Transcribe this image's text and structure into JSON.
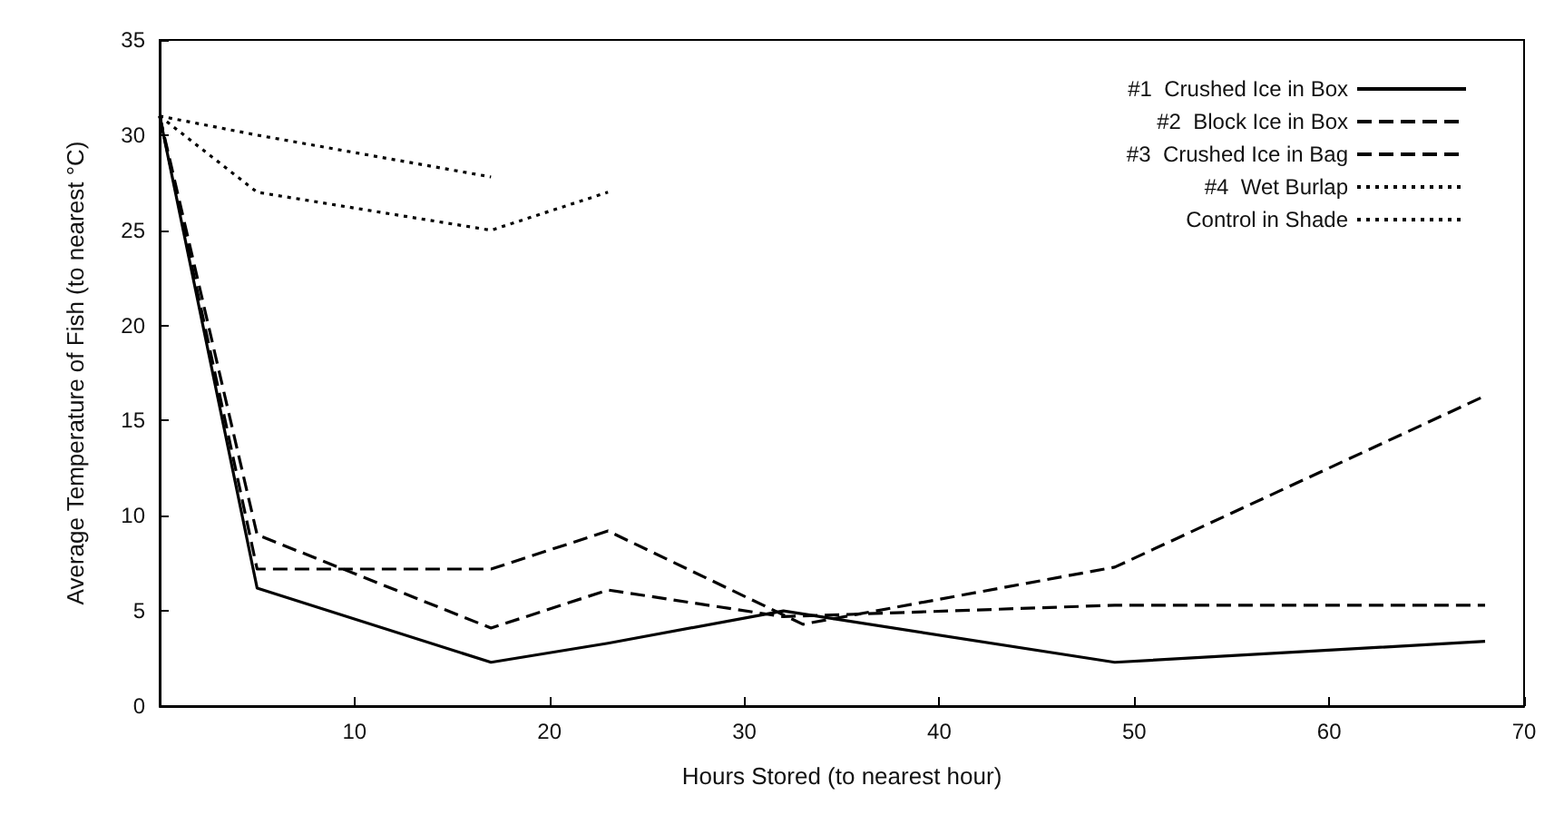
{
  "chart_data": {
    "type": "line",
    "xlabel": "Hours Stored (to nearest hour)",
    "ylabel": "Average Temperature of Fish (to nearest °C)",
    "xlim": [
      0,
      70
    ],
    "xticks": [
      {
        "value": 0,
        "label": null
      },
      10,
      20,
      30,
      40,
      50,
      60,
      70
    ],
    "ylim": [
      0,
      35
    ],
    "yticks": [
      0,
      5,
      10,
      15,
      20,
      25,
      30,
      35
    ],
    "grid": false,
    "legend": "top right",
    "marker": "none",
    "series": [
      {
        "name": "#1  Crushed Ice in Box",
        "color": "#000000",
        "line_style": "solid",
        "x": [
          0,
          5,
          17,
          23,
          32,
          49,
          68
        ],
        "values": [
          31,
          6.2,
          2.3,
          3.3,
          5,
          2.3,
          3.4
        ]
      },
      {
        "name": "#2  Block Ice in Box",
        "color": "#000000",
        "line_style": "dashed",
        "x": [
          0,
          5,
          17,
          23,
          32,
          49,
          68
        ],
        "values": [
          31,
          9,
          4.1,
          6.1,
          4.7,
          5.3,
          5.3
        ]
      },
      {
        "name": "#3  Crushed Ice in Bag",
        "color": "#000000",
        "line_style": "dashed",
        "x": [
          0,
          5,
          17,
          23,
          33,
          49,
          68
        ],
        "values": [
          31,
          7.2,
          7.2,
          9.2,
          4.3,
          7.3,
          16.3
        ]
      },
      {
        "name": "#4  Wet Burlap",
        "color": "#000000",
        "line_style": "dotted",
        "x": [
          0,
          5,
          17,
          23
        ],
        "values": [
          31,
          27,
          25,
          27
        ]
      },
      {
        "name": "Control in Shade",
        "color": "#000000",
        "line_style": "dotted",
        "x": [
          0,
          5,
          17
        ],
        "values": [
          31,
          30,
          27.8
        ]
      }
    ]
  }
}
